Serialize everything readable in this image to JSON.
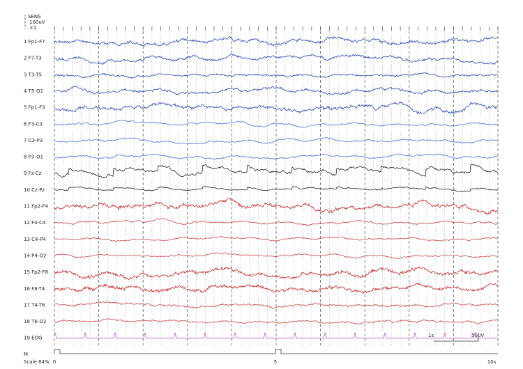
{
  "header": {
    "title": "SENS",
    "sensitivity": "100uV",
    "gain": "×1"
  },
  "channels": [
    "1 Fp1-F7",
    "2 F7-T3",
    "3 T3-T5",
    "4 T5-O1",
    "5 Fp1-F3",
    "6 F3-C3",
    "7 C3-P3",
    "8 P3-O1",
    "9 Fz-Cz",
    "10 Cz-Pz",
    "11 Fp2-F4",
    "12 F4-C4",
    "13 C4-P4",
    "14 P4-O2",
    "15 Fp2-F8",
    "16 F8-T4",
    "17 T4-T6",
    "18 T6-O2",
    "19 EOG"
  ],
  "calibration": {
    "time": "1s",
    "amplitude": "50uV"
  },
  "footer": {
    "mark": "M",
    "scale": "Scale 84%",
    "time_labels": [
      "0",
      "5",
      "10s"
    ]
  }
}
